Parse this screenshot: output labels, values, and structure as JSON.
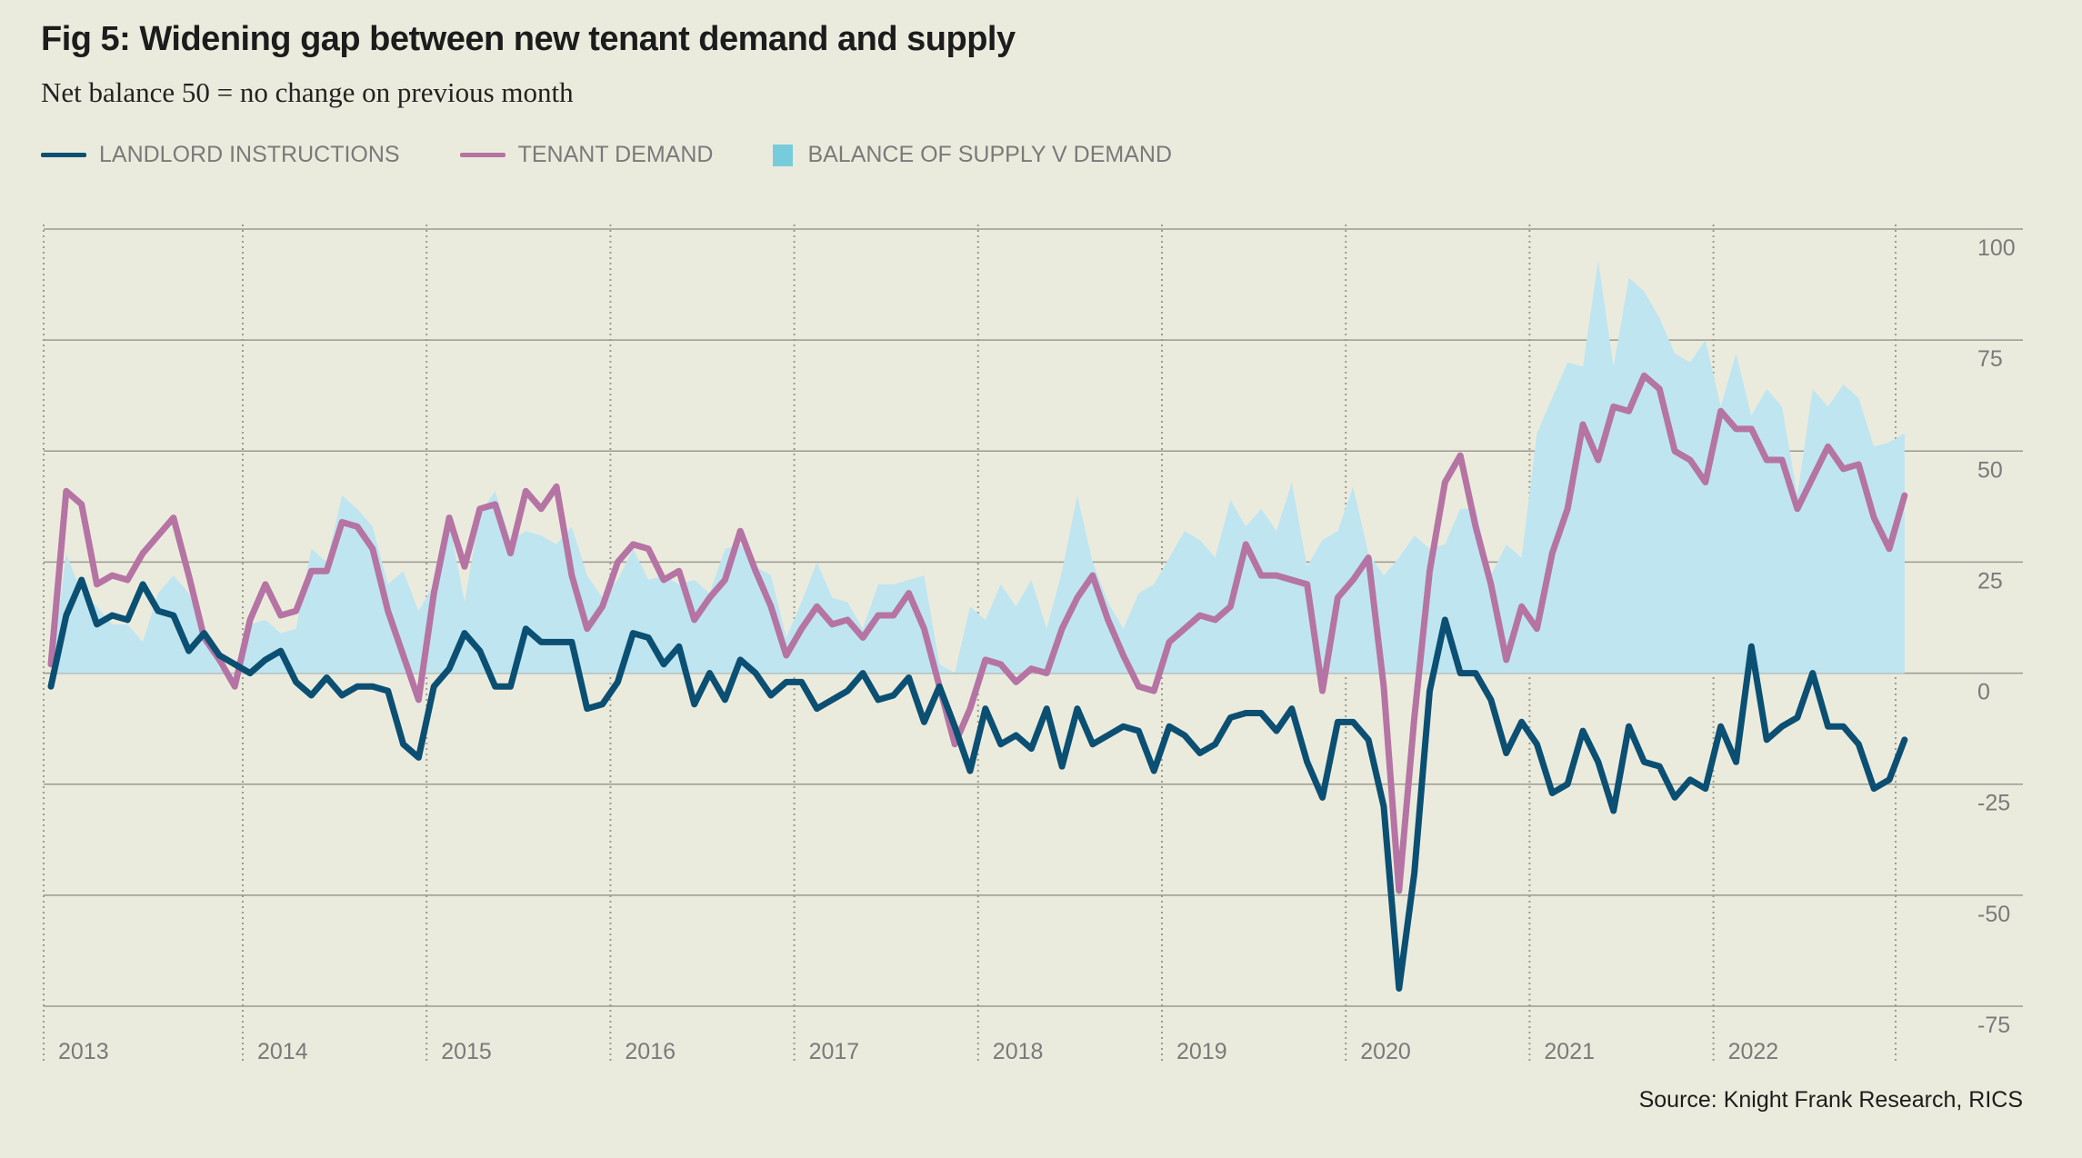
{
  "title": "Fig 5: Widening gap between new tenant demand and supply",
  "subtitle": "Net balance 50 = no change on previous month",
  "source": "Source: Knight Frank Research, RICS",
  "legend": [
    {
      "label": "LANDLORD INSTRUCTIONS",
      "type": "line",
      "color": "#0b4f73"
    },
    {
      "label": "TENANT DEMAND",
      "type": "line",
      "color": "#b574a3"
    },
    {
      "label": "BALANCE OF SUPPLY V DEMAND",
      "type": "area",
      "color": "#77ccdb"
    }
  ],
  "chart_data": {
    "type": "line",
    "title": "Fig 5: Widening gap between new tenant demand and supply",
    "subtitle": "Net balance 50 = no change on previous month",
    "xlabel": "",
    "ylabel": "",
    "frequency": "monthly",
    "start": "2013-01",
    "x_tick_labels": [
      "2013",
      "2014",
      "2015",
      "2016",
      "2017",
      "2018",
      "2019",
      "2020",
      "2021",
      "2022"
    ],
    "y_tick_labels": [
      "100",
      "75",
      "50",
      "25",
      "0",
      "-25",
      "-50",
      "-75"
    ],
    "ylim": [
      -75,
      100
    ],
    "y_ticks": [
      100,
      75,
      50,
      25,
      0,
      -25,
      -50,
      -75
    ],
    "grid": true,
    "legend_position": "top-left",
    "y_axis_side": "right",
    "series": [
      {
        "name": "LANDLORD INSTRUCTIONS",
        "type": "line",
        "color": "#0b4f73",
        "values": [
          -3,
          13,
          21,
          11,
          13,
          12,
          20,
          14,
          13,
          5,
          9,
          4,
          2,
          0,
          3,
          5,
          -2,
          -5,
          -1,
          -5,
          -3,
          -3,
          -4,
          -16,
          -19,
          -3,
          1,
          9,
          5,
          -3,
          -3,
          10,
          7,
          7,
          7,
          -8,
          -7,
          -2,
          9,
          8,
          2,
          6,
          -7,
          0,
          -6,
          3,
          0,
          -5,
          -2,
          -2,
          -8,
          -6,
          -4,
          0,
          -6,
          -5,
          -1,
          -11,
          -3,
          -12,
          -22,
          -8,
          -16,
          -14,
          -17,
          -8,
          -21,
          -8,
          -16,
          -14,
          -12,
          -13,
          -22,
          -12,
          -14,
          -18,
          -16,
          -10,
          -9,
          -9,
          -13,
          -8,
          -20,
          -28,
          -11,
          -11,
          -15,
          -30,
          -71,
          -45,
          -4,
          12,
          0,
          0,
          -6,
          -18,
          -11,
          -16,
          -27,
          -25,
          -13,
          -20,
          -31,
          -12,
          -20,
          -21,
          -28,
          -24,
          -26,
          -12,
          -20,
          6,
          -15,
          -12,
          -10,
          0,
          -12,
          -12,
          -16,
          -26,
          -24,
          -15
        ]
      },
      {
        "name": "TENANT DEMAND",
        "type": "line",
        "color": "#b574a3",
        "values": [
          2,
          41,
          38,
          20,
          22,
          21,
          27,
          31,
          35,
          22,
          8,
          3,
          -3,
          12,
          20,
          13,
          14,
          23,
          23,
          34,
          33,
          28,
          14,
          4,
          -6,
          18,
          35,
          24,
          37,
          38,
          27,
          41,
          37,
          42,
          22,
          10,
          15,
          25,
          29,
          28,
          21,
          23,
          12,
          17,
          21,
          32,
          23,
          15,
          4,
          10,
          15,
          11,
          12,
          8,
          13,
          13,
          18,
          10,
          -3,
          -16,
          -8,
          3,
          2,
          -2,
          1,
          0,
          10,
          17,
          22,
          12,
          4,
          -3,
          -4,
          7,
          10,
          13,
          12,
          15,
          29,
          22,
          22,
          21,
          20,
          -4,
          17,
          21,
          26,
          -3,
          -49,
          -10,
          23,
          43,
          49,
          33,
          20,
          3,
          15,
          10,
          27,
          37,
          56,
          48,
          60,
          59,
          67,
          64,
          50,
          48,
          43,
          59,
          55,
          55,
          48,
          48,
          37,
          44,
          51,
          46,
          47,
          35,
          28,
          40
        ]
      },
      {
        "name": "BALANCE OF SUPPLY V DEMAND",
        "type": "area",
        "color": "#bfe5f0",
        "values": [
          0,
          27,
          18,
          15,
          11,
          11,
          7,
          18,
          22,
          18,
          9,
          1,
          0,
          11,
          12,
          9,
          10,
          28,
          25,
          40,
          37,
          33,
          20,
          23,
          14,
          20,
          34,
          16,
          36,
          41,
          30,
          32,
          31,
          29,
          33,
          22,
          17,
          21,
          28,
          21,
          22,
          20,
          21,
          18,
          28,
          29,
          24,
          22,
          8,
          16,
          25,
          17,
          16,
          10,
          20,
          20,
          21,
          22,
          2,
          0,
          15,
          12,
          20,
          15,
          21,
          10,
          23,
          40,
          25,
          16,
          10,
          18,
          20,
          26,
          32,
          30,
          26,
          39,
          33,
          37,
          32,
          43,
          24,
          30,
          32,
          42,
          27,
          22,
          26,
          31,
          28,
          29,
          37,
          37,
          22,
          29,
          26,
          54,
          62,
          70,
          69,
          93,
          69,
          89,
          86,
          80,
          72,
          70,
          75,
          60,
          72,
          58,
          64,
          60,
          40,
          64,
          60,
          65,
          62,
          51,
          52,
          54
        ]
      }
    ]
  }
}
